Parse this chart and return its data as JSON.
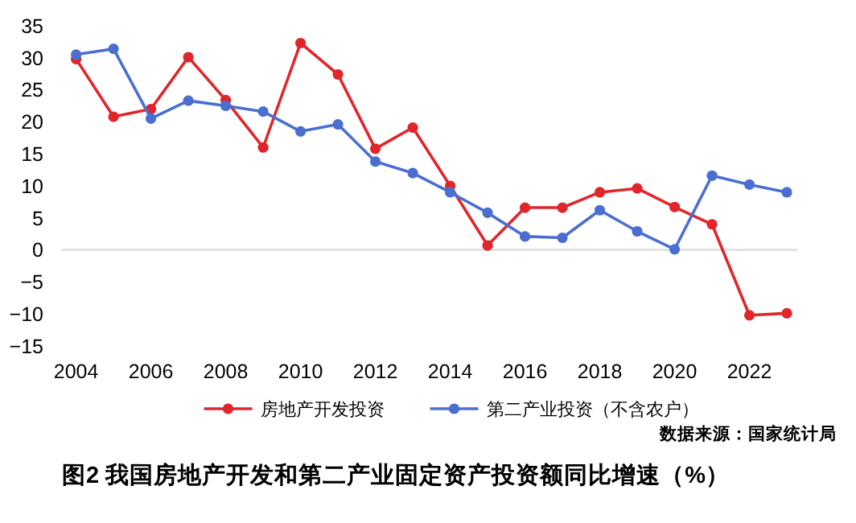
{
  "chart_data": {
    "type": "line",
    "title": "图2 我国房地产开发和第二产业固定资产投资额同比增速（%）",
    "annotations": [
      "数据来源：国家统计局"
    ],
    "x": [
      2004,
      2005,
      2006,
      2007,
      2008,
      2009,
      2010,
      2011,
      2012,
      2013,
      2014,
      2015,
      2016,
      2017,
      2018,
      2019,
      2020,
      2021,
      2022,
      2023
    ],
    "series": [
      {
        "name": "房地产开发投资",
        "color": "#e0262b",
        "values": [
          29.8,
          20.8,
          22.0,
          30.1,
          23.4,
          16.0,
          32.3,
          27.4,
          15.8,
          19.1,
          10.0,
          0.7,
          6.6,
          6.6,
          9.0,
          9.6,
          6.7,
          4.0,
          -10.2,
          -9.9
        ]
      },
      {
        "name": "第二产业投资（不含农户）",
        "color": "#4a6fd0",
        "values": [
          30.5,
          31.4,
          20.5,
          23.3,
          22.5,
          21.6,
          18.5,
          19.6,
          13.8,
          12.0,
          9.0,
          5.8,
          2.1,
          1.9,
          6.2,
          2.9,
          0.1,
          11.6,
          10.2,
          9.0
        ]
      }
    ],
    "xlim": [
      2003.6,
      2023.3
    ],
    "xticks": [
      2004,
      2006,
      2008,
      2010,
      2012,
      2014,
      2016,
      2018,
      2020,
      2022
    ],
    "ylim": [
      -15,
      35
    ],
    "yticks": [
      -15,
      -10,
      -5,
      0,
      5,
      10,
      15,
      20,
      25,
      30,
      35
    ],
    "ref_lines": [
      {
        "axis": "y",
        "value": 0,
        "color": "#e3e3e3"
      }
    ],
    "legend": "bottom",
    "marker": "circle",
    "line_style": "solid"
  }
}
